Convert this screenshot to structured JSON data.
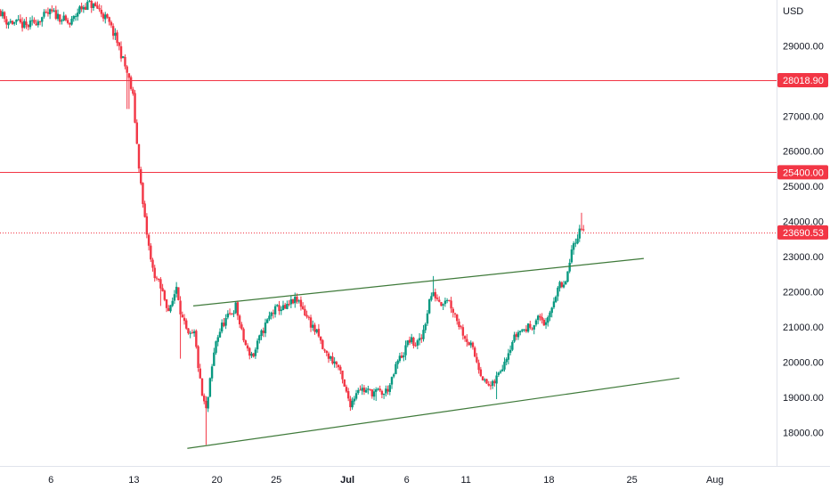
{
  "chart_data": {
    "type": "candlestick",
    "currency": "USD",
    "y_ticks": [
      "18000.00",
      "19000.00",
      "20000.00",
      "21000.00",
      "22000.00",
      "23000.00",
      "24000.00",
      "25000.00",
      "26000.00",
      "27000.00",
      "28000.00",
      "29000.00"
    ],
    "y_tick_values": [
      18000,
      19000,
      20000,
      21000,
      22000,
      23000,
      24000,
      25000,
      26000,
      27000,
      28000,
      29000
    ],
    "x_ticks": [
      "6",
      "13",
      "20",
      "25",
      "Jul",
      "6",
      "11",
      "18",
      "25",
      "Aug"
    ],
    "x_tick_days": [
      6,
      13,
      20,
      25,
      31,
      36,
      41,
      48,
      55,
      62
    ],
    "ylim": [
      17050,
      30300
    ],
    "xlim": [
      1.7,
      67.2
    ],
    "grid": false,
    "horizontal_levels": [
      {
        "label": "28018.90",
        "value": 28018.9,
        "color": "#f23645",
        "style": "solid"
      },
      {
        "label": "25400.00",
        "value": 25400,
        "color": "#f23645",
        "style": "solid"
      },
      {
        "label": "23690.53",
        "value": 23690.53,
        "color": "#f23645",
        "style": "dotted"
      }
    ],
    "trendlines": [
      {
        "name": "channel-top",
        "color": "#3f7a3a",
        "from": {
          "day": 18.0,
          "value": 21600
        },
        "to": {
          "day": 56.0,
          "value": 22950
        }
      },
      {
        "name": "channel-bottom",
        "color": "#3f7a3a",
        "from": {
          "day": 17.5,
          "value": 17550
        },
        "to": {
          "day": 59.0,
          "value": 19550
        }
      }
    ],
    "up_color": "#089981",
    "down_color": "#f23645",
    "candles_per_day": 6,
    "start_day": 1.75,
    "close_path": [
      [
        1.7,
        30000
      ],
      [
        2.2,
        29700
      ],
      [
        3.0,
        29650
      ],
      [
        4.0,
        29550
      ],
      [
        5.0,
        29750
      ],
      [
        6.0,
        29950
      ],
      [
        6.8,
        29800
      ],
      [
        7.6,
        29600
      ],
      [
        8.4,
        30050
      ],
      [
        9.2,
        30200
      ],
      [
        10.0,
        30050
      ],
      [
        10.8,
        29700
      ],
      [
        11.6,
        29100
      ],
      [
        12.4,
        28250
      ],
      [
        12.9,
        27600
      ],
      [
        13.3,
        26000
      ],
      [
        13.8,
        24300
      ],
      [
        14.5,
        22700
      ],
      [
        15.0,
        22300
      ],
      [
        15.5,
        21900
      ],
      [
        16.0,
        21400
      ],
      [
        16.6,
        22200
      ],
      [
        17.0,
        21300
      ],
      [
        17.6,
        20700
      ],
      [
        18.1,
        20800
      ],
      [
        18.7,
        19100
      ],
      [
        19.1,
        18600
      ],
      [
        19.4,
        19400
      ],
      [
        19.9,
        20600
      ],
      [
        20.5,
        21100
      ],
      [
        21.0,
        21300
      ],
      [
        21.6,
        21600
      ],
      [
        22.1,
        20800
      ],
      [
        22.6,
        20300
      ],
      [
        23.1,
        20200
      ],
      [
        23.5,
        20600
      ],
      [
        24.0,
        21000
      ],
      [
        24.6,
        21400
      ],
      [
        25.2,
        21550
      ],
      [
        25.8,
        21500
      ],
      [
        26.4,
        21750
      ],
      [
        27.0,
        21700
      ],
      [
        27.5,
        21350
      ],
      [
        28.0,
        21050
      ],
      [
        28.6,
        20700
      ],
      [
        29.0,
        20300
      ],
      [
        29.6,
        20100
      ],
      [
        30.2,
        19900
      ],
      [
        30.8,
        19200
      ],
      [
        31.3,
        18800
      ],
      [
        31.9,
        19300
      ],
      [
        32.4,
        19200
      ],
      [
        33.0,
        19150
      ],
      [
        33.6,
        19150
      ],
      [
        34.1,
        19100
      ],
      [
        34.7,
        19400
      ],
      [
        35.2,
        20000
      ],
      [
        35.8,
        20300
      ],
      [
        36.2,
        20650
      ],
      [
        36.7,
        20500
      ],
      [
        37.2,
        20600
      ],
      [
        37.6,
        21200
      ],
      [
        38.0,
        21900
      ],
      [
        38.4,
        21900
      ],
      [
        38.9,
        21700
      ],
      [
        39.4,
        21850
      ],
      [
        39.9,
        21500
      ],
      [
        40.4,
        21100
      ],
      [
        40.9,
        20750
      ],
      [
        41.5,
        20400
      ],
      [
        42.0,
        19950
      ],
      [
        42.6,
        19400
      ],
      [
        43.2,
        19300
      ],
      [
        43.8,
        19700
      ],
      [
        44.3,
        20100
      ],
      [
        44.9,
        20600
      ],
      [
        45.5,
        20900
      ],
      [
        46.1,
        20950
      ],
      [
        46.7,
        21100
      ],
      [
        47.3,
        21300
      ],
      [
        47.8,
        21000
      ],
      [
        48.3,
        21650
      ],
      [
        48.8,
        22200
      ],
      [
        49.2,
        22050
      ],
      [
        49.7,
        22700
      ],
      [
        50.1,
        23400
      ],
      [
        50.6,
        23750
      ],
      [
        51.0,
        23900
      ]
    ],
    "wick_spikes": [
      {
        "day": 12.5,
        "low": 27200
      },
      {
        "day": 15.2,
        "low": 21600
      },
      {
        "day": 16.9,
        "low": 20100
      },
      {
        "day": 18.9,
        "low": 19000
      },
      {
        "day": 19.1,
        "low": 17650
      },
      {
        "day": 31.4,
        "low": 18650
      },
      {
        "day": 33.4,
        "low": 18900
      },
      {
        "day": 38.2,
        "high": 22450
      },
      {
        "day": 43.6,
        "low": 18950
      },
      {
        "day": 50.8,
        "high": 24250
      }
    ]
  }
}
